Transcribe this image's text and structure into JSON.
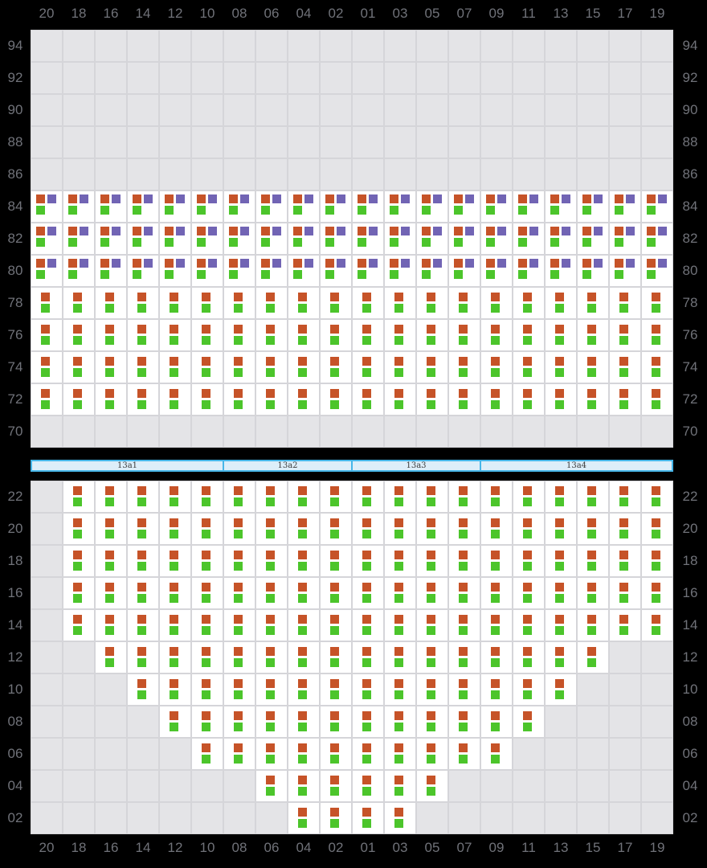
{
  "colors": {
    "background": "#000000",
    "label_text": "#707279",
    "grid_line": "#d5d5d9",
    "cell_empty": "#e4e4e7",
    "cell_filled": "#ffffff",
    "square_orange": "#c65328",
    "square_purple": "#7164b4",
    "square_green": "#4cc52b",
    "bar_fill": "#ddeef9",
    "bar_border": "#47b6e8",
    "bar_text": "#3c3c3c"
  },
  "columns": [
    "20",
    "18",
    "16",
    "14",
    "12",
    "10",
    "08",
    "06",
    "04",
    "02",
    "01",
    "03",
    "05",
    "07",
    "09",
    "11",
    "13",
    "15",
    "17",
    "19"
  ],
  "cell_legend": {
    "e": "empty-cell",
    "t": "cell-with-orange-purple-green-icons",
    "d": "cell-with-orange-green-icons"
  },
  "upper_section": {
    "rows": [
      {
        "label": "94",
        "cells": "eeeeeeeeeeeeeeeeeeee"
      },
      {
        "label": "92",
        "cells": "eeeeeeeeeeeeeeeeeeee"
      },
      {
        "label": "90",
        "cells": "eeeeeeeeeeeeeeeeeeee"
      },
      {
        "label": "88",
        "cells": "eeeeeeeeeeeeeeeeeeee"
      },
      {
        "label": "86",
        "cells": "eeeeeeeeeeeeeeeeeeee"
      },
      {
        "label": "84",
        "cells": "tttttttttttttttttttt"
      },
      {
        "label": "82",
        "cells": "tttttttttttttttttttt"
      },
      {
        "label": "80",
        "cells": "tttttttttttttttttttt"
      },
      {
        "label": "78",
        "cells": "dddddddddddddddddddd"
      },
      {
        "label": "76",
        "cells": "dddddddddddddddddddd"
      },
      {
        "label": "74",
        "cells": "dddddddddddddddddddd"
      },
      {
        "label": "72",
        "cells": "dddddddddddddddddddd"
      },
      {
        "label": "70",
        "cells": "eeeeeeeeeeeeeeeeeeee"
      }
    ]
  },
  "divider_bar": {
    "segments": [
      {
        "label": "13a1",
        "span": 6
      },
      {
        "label": "13a2",
        "span": 4
      },
      {
        "label": "13a3",
        "span": 4
      },
      {
        "label": "13a4",
        "span": 6
      }
    ]
  },
  "lower_section": {
    "rows": [
      {
        "label": "22",
        "cells": "eddddddddddddddddddde"
      },
      {
        "label": "20",
        "cells": "eddddddddddddddddddde"
      },
      {
        "label": "18",
        "cells": "eddddddddddddddddddde"
      },
      {
        "label": "16",
        "cells": "eddddddddddddddddddde"
      },
      {
        "label": "14",
        "cells": "eddddddddddddddddddde"
      },
      {
        "label": "12",
        "cells": "eeddddddddddddddddee"
      },
      {
        "label": "10",
        "cells": "eeeddddddddddddddeee"
      },
      {
        "label": "08",
        "cells": "eeeeddddddddddddeeee"
      },
      {
        "label": "06",
        "cells": "eeeeeddddddddddeeeee"
      },
      {
        "label": "04",
        "cells": "eeeeeeeddddddeeeeeee"
      },
      {
        "label": "02",
        "cells": "eeeeeeeeddddeeeeeeee"
      }
    ]
  }
}
